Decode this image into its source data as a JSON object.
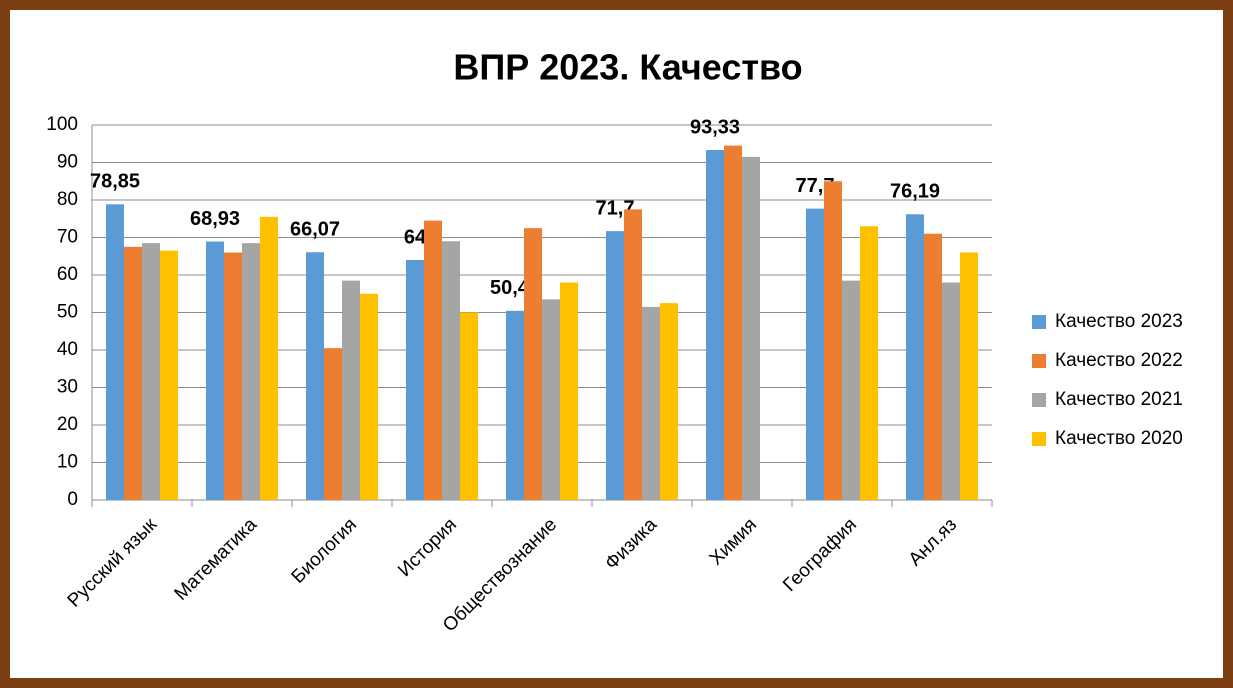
{
  "chart_data": {
    "type": "bar",
    "title": "ВПР 2023. Качество",
    "categories": [
      "Русский язык",
      "Математика",
      "Биология",
      "История",
      "Обществознание",
      "Физика",
      "Химия",
      "География",
      "Анл.яз"
    ],
    "series": [
      {
        "name": "Качество 2023",
        "color": "#5b9bd5",
        "values": [
          78.85,
          68.93,
          66.07,
          64,
          50.45,
          71.7,
          93.33,
          77.7,
          76.19
        ],
        "value_labels": [
          "78,85",
          "68,93",
          "66,07",
          "64",
          "50,45",
          "71,7",
          "93,33",
          "77,7",
          "76,19"
        ]
      },
      {
        "name": "Качество 2022",
        "color": "#ed7d31",
        "values": [
          67.5,
          66,
          40.5,
          74.5,
          72.5,
          77.5,
          94.5,
          85,
          71
        ]
      },
      {
        "name": "Качество 2021",
        "color": "#a5a5a5",
        "values": [
          68.5,
          68.5,
          58.5,
          69,
          53.5,
          51.5,
          91.5,
          58.5,
          58
        ]
      },
      {
        "name": "Качество 2020",
        "color": "#ffc000",
        "values": [
          66.5,
          75.5,
          55,
          50,
          58,
          52.5,
          null,
          73,
          66
        ]
      }
    ],
    "ylim": [
      0,
      100
    ],
    "yticks": [
      0,
      10,
      20,
      30,
      40,
      50,
      60,
      70,
      80,
      90,
      100
    ],
    "grid": true,
    "legend": "right"
  }
}
